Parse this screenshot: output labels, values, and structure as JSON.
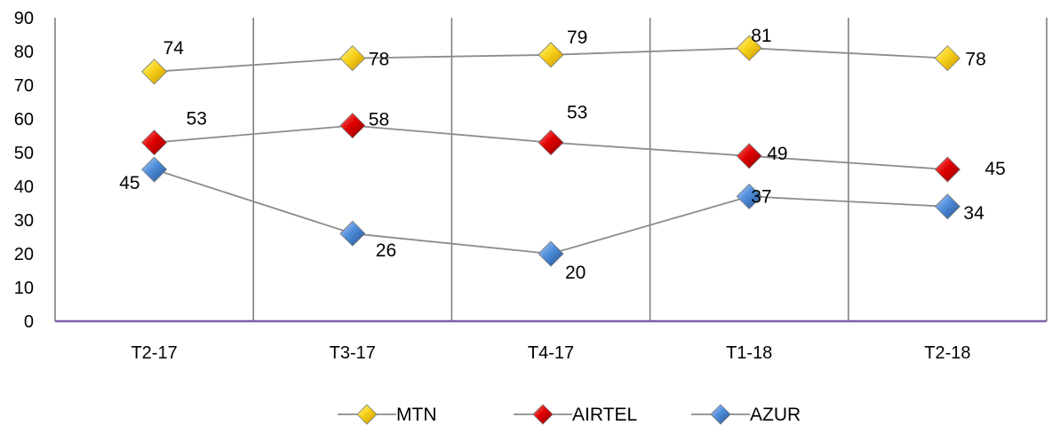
{
  "chart_data": {
    "type": "line",
    "categories": [
      "T2-17",
      "T3-17",
      "T4-17",
      "T1-18",
      "T2-18"
    ],
    "series": [
      {
        "name": "MTN",
        "values": [
          74,
          78,
          79,
          81,
          78
        ],
        "color": "#F2C200",
        "line_color": "#8C8C8C"
      },
      {
        "name": "AIRTEL",
        "values": [
          53,
          58,
          53,
          49,
          45
        ],
        "color": "#D40000",
        "line_color": "#8C8C8C"
      },
      {
        "name": "AZUR",
        "values": [
          45,
          26,
          20,
          37,
          34
        ],
        "color": "#3F7FCC",
        "line_color": "#8C8C8C"
      }
    ],
    "ylim": [
      0,
      90
    ],
    "yticks": [
      0,
      10,
      20,
      30,
      40,
      50,
      60,
      70,
      80,
      90
    ],
    "title": "",
    "xlabel": "",
    "ylabel": "",
    "grid": "vertical",
    "legend": "bottom-center",
    "marker": "diamond",
    "axis_color": "#7F5FA8",
    "grid_color": "#808080"
  }
}
